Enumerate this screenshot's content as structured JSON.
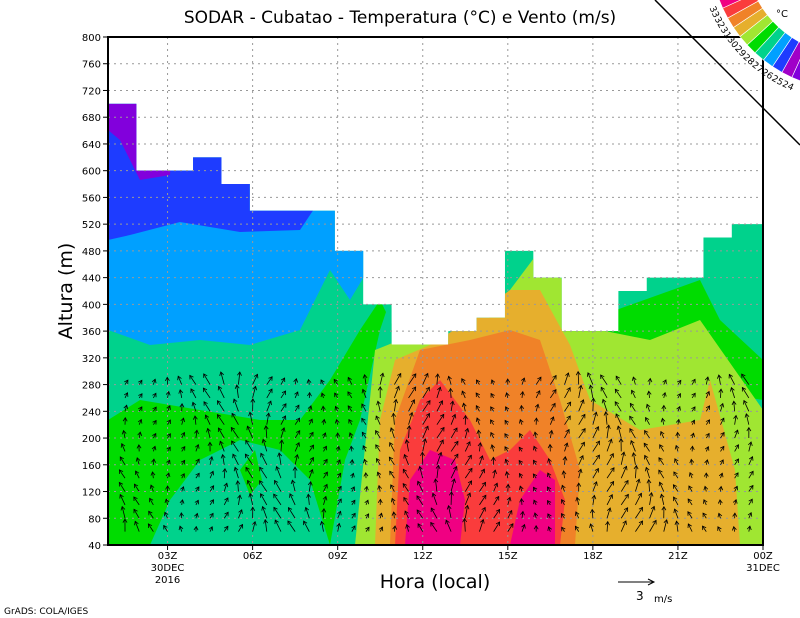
{
  "chart_data": {
    "type": "heatmap",
    "title": "SODAR - Cubatao - Temperatura (°C) e Vento (m/s)",
    "xlabel": "Hora (local)",
    "ylabel": "Altura (m)",
    "ylim": [
      40,
      800
    ],
    "yticks": [
      40,
      80,
      120,
      160,
      200,
      240,
      280,
      320,
      360,
      400,
      440,
      480,
      520,
      560,
      600,
      640,
      680,
      720,
      760,
      800
    ],
    "xlim_hours": [
      0.9,
      24
    ],
    "xticks": [
      {
        "h": 3,
        "label": "03Z",
        "sub1": "30DEC",
        "sub2": "2016"
      },
      {
        "h": 6,
        "label": "06Z"
      },
      {
        "h": 9,
        "label": "09Z"
      },
      {
        "h": 12,
        "label": "12Z"
      },
      {
        "h": 15,
        "label": "15Z"
      },
      {
        "h": 18,
        "label": "18Z"
      },
      {
        "h": 21,
        "label": "21Z"
      },
      {
        "h": 24,
        "label": "00Z",
        "sub1": "31DEC"
      }
    ],
    "grid": true,
    "colorbar": {
      "unit": "°C",
      "labels": [
        "24",
        "25",
        "26",
        "27",
        "28",
        "29",
        "30",
        "31",
        "32",
        "33"
      ],
      "colors": [
        "#8200dc",
        "#a000c8",
        "#1e3cff",
        "#00a0ff",
        "#00d28c",
        "#00dc00",
        "#a0e632",
        "#e6af2d",
        "#f08228",
        "#fa3c3c",
        "#f00082"
      ]
    },
    "vector_ref": {
      "value": "3",
      "unit": "m/s"
    },
    "data_top_height_m": [
      [
        0.9,
        700
      ],
      [
        1.9,
        600
      ],
      [
        3.9,
        620
      ],
      [
        4.9,
        580
      ],
      [
        5.9,
        540
      ],
      [
        8.9,
        480
      ],
      [
        9.9,
        400
      ],
      [
        10.9,
        340
      ],
      [
        12.9,
        360
      ],
      [
        13.9,
        380
      ],
      [
        14.9,
        480
      ],
      [
        15.9,
        440
      ],
      [
        16.9,
        360
      ],
      [
        18.9,
        420
      ],
      [
        19.9,
        440
      ],
      [
        21.9,
        500
      ],
      [
        22.9,
        520
      ],
      [
        24,
        520
      ]
    ]
  },
  "footer": "GrADS: COLA/IGES"
}
